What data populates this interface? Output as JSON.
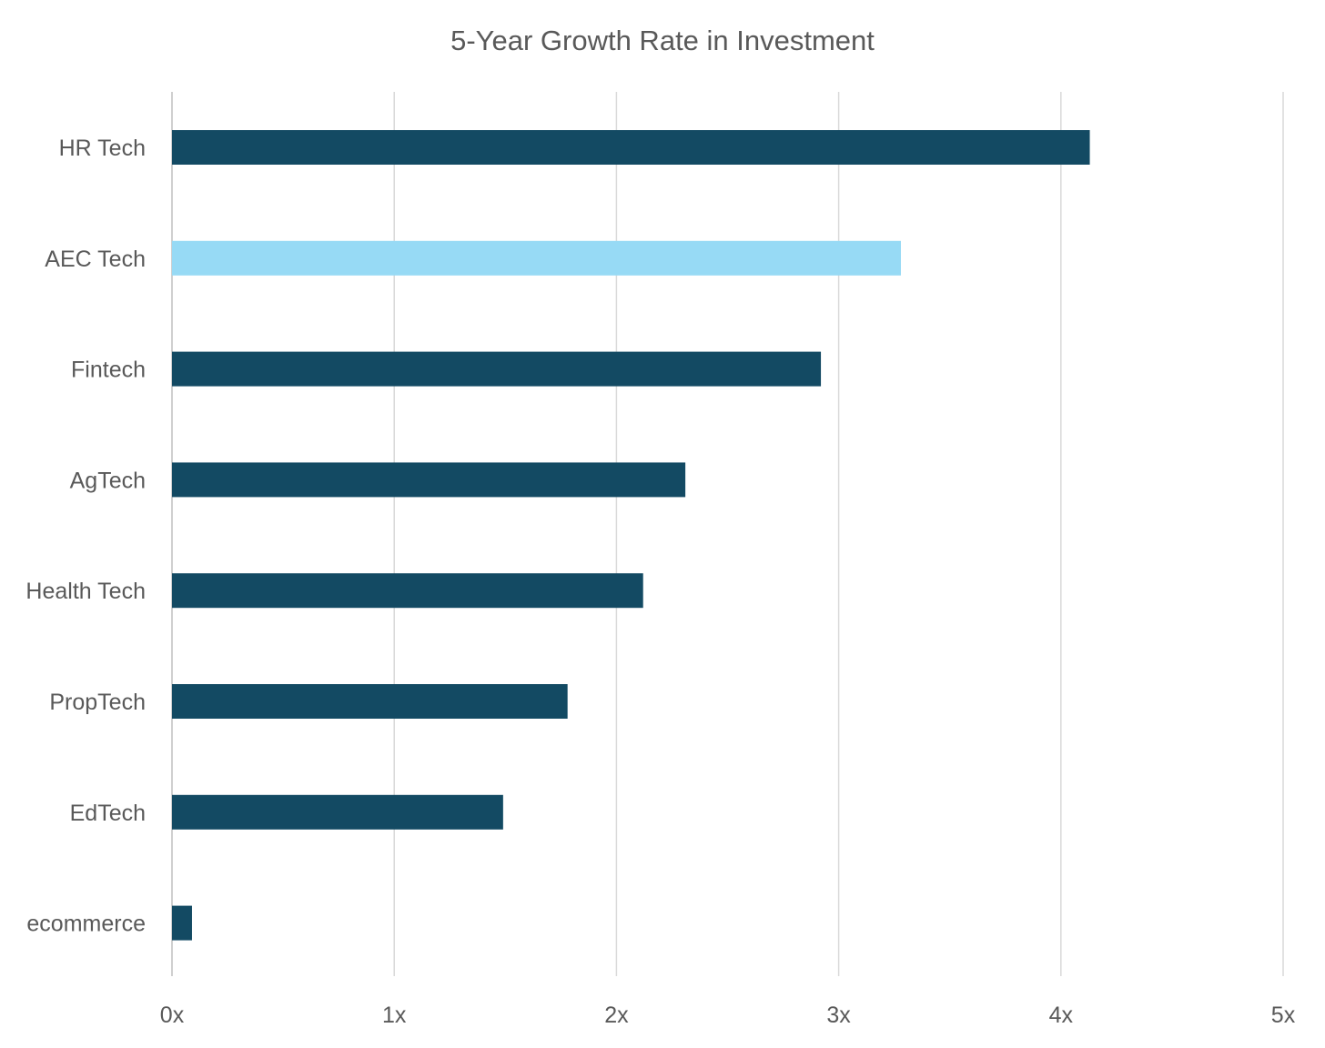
{
  "chart_data": {
    "type": "bar",
    "orientation": "horizontal",
    "title": "5-Year Growth Rate in Investment",
    "xlabel": "",
    "ylabel": "",
    "categories": [
      "HR Tech",
      "AEC Tech",
      "Fintech",
      "AgTech",
      "Health Tech",
      "PropTech",
      "EdTech",
      "ecommerce"
    ],
    "values": [
      4.13,
      3.28,
      2.92,
      2.31,
      2.12,
      1.78,
      1.49,
      0.09
    ],
    "highlight_category": "AEC Tech",
    "xlim": [
      0,
      5
    ],
    "xticks": [
      0,
      1,
      2,
      3,
      4,
      5
    ],
    "xtick_labels": [
      "0x",
      "1x",
      "2x",
      "3x",
      "4x",
      "5x"
    ],
    "grid": "vertical",
    "legend": "none",
    "colors": {
      "bar": "#134a63",
      "highlight": "#97daf5",
      "grid": "#d9d9d9",
      "text": "#595959"
    }
  }
}
